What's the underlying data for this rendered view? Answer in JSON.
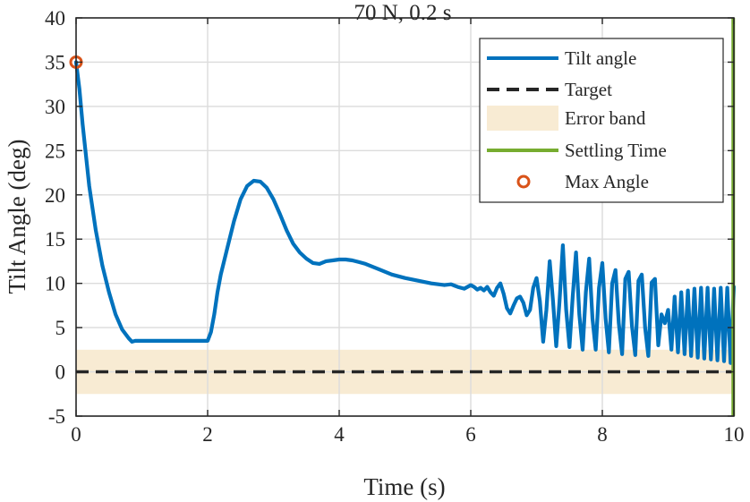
{
  "chart_data": {
    "type": "line",
    "title": "70 N, 0.2 s",
    "xlabel": "Time (s)",
    "ylabel": "Tilt Angle (deg)",
    "xlim": [
      0,
      10
    ],
    "ylim": [
      -5,
      40
    ],
    "xticks": [
      0,
      2,
      4,
      6,
      8,
      10
    ],
    "xtick_labels": [
      "0",
      "2",
      "4",
      "6",
      "8",
      "10"
    ],
    "yticks": [
      -5,
      0,
      5,
      10,
      15,
      20,
      25,
      30,
      35,
      40
    ],
    "ytick_labels": [
      "-5",
      "0",
      "5",
      "10",
      "15",
      "20",
      "25",
      "30",
      "35",
      "40"
    ],
    "grid": true,
    "legend_position": "top-right",
    "colors": {
      "tilt": "#0072BD",
      "target": "#262626",
      "band": "#F8EBD3",
      "settling": "#77AC30",
      "max_marker": "#D95319"
    },
    "series": [
      {
        "name": "Tilt angle",
        "style": "solid",
        "x": [
          0,
          0.05,
          0.1,
          0.15,
          0.2,
          0.3,
          0.4,
          0.5,
          0.6,
          0.7,
          0.8,
          0.85,
          0.9,
          0.95,
          1.0,
          1.2,
          1.4,
          1.6,
          1.8,
          2.0,
          2.05,
          2.1,
          2.15,
          2.2,
          2.3,
          2.4,
          2.5,
          2.6,
          2.7,
          2.8,
          2.9,
          3.0,
          3.1,
          3.2,
          3.3,
          3.4,
          3.5,
          3.6,
          3.7,
          3.8,
          3.9,
          4.0,
          4.1,
          4.2,
          4.3,
          4.4,
          4.6,
          4.8,
          5.0,
          5.2,
          5.4,
          5.6,
          5.7,
          5.8,
          5.9,
          6.0,
          6.05,
          6.1,
          6.15,
          6.2,
          6.25,
          6.3,
          6.35,
          6.4,
          6.45,
          6.5,
          6.55,
          6.6,
          6.65,
          6.7,
          6.75,
          6.8,
          6.85,
          6.9,
          6.95,
          7.0,
          7.05,
          7.1,
          7.15,
          7.2,
          7.25,
          7.3,
          7.35,
          7.4,
          7.45,
          7.5,
          7.55,
          7.6,
          7.65,
          7.7,
          7.75,
          7.8,
          7.85,
          7.9,
          7.95,
          8.0,
          8.05,
          8.1,
          8.15,
          8.2,
          8.25,
          8.3,
          8.35,
          8.4,
          8.45,
          8.5,
          8.55,
          8.6,
          8.65,
          8.7,
          8.75,
          8.8,
          8.85,
          8.9,
          8.95,
          9.0,
          9.05,
          9.1,
          9.15,
          9.2,
          9.25,
          9.3,
          9.35,
          9.4,
          9.45,
          9.5,
          9.55,
          9.6,
          9.65,
          9.7,
          9.75,
          9.8,
          9.85,
          9.9,
          9.95,
          10.0
        ],
        "y": [
          35.0,
          32.0,
          28.0,
          24.5,
          21.0,
          16.0,
          12.0,
          9.0,
          6.5,
          4.8,
          3.8,
          3.4,
          3.5,
          3.5,
          3.5,
          3.5,
          3.5,
          3.5,
          3.5,
          3.5,
          4.5,
          6.5,
          9.0,
          11.0,
          14.0,
          17.0,
          19.5,
          21.0,
          21.6,
          21.5,
          20.8,
          19.5,
          17.8,
          16.0,
          14.5,
          13.5,
          12.8,
          12.3,
          12.2,
          12.5,
          12.6,
          12.7,
          12.7,
          12.6,
          12.4,
          12.2,
          11.6,
          11.0,
          10.6,
          10.3,
          10.0,
          9.8,
          9.9,
          9.6,
          9.4,
          9.8,
          9.6,
          9.3,
          9.5,
          9.2,
          9.6,
          9.0,
          8.6,
          9.5,
          10.0,
          8.8,
          7.2,
          6.6,
          7.5,
          8.3,
          8.5,
          7.8,
          6.4,
          7.0,
          9.5,
          10.6,
          8.0,
          3.4,
          7.0,
          12.5,
          8.0,
          2.9,
          8.0,
          14.3,
          7.0,
          2.8,
          8.5,
          13.5,
          6.5,
          2.5,
          9.0,
          12.8,
          6.0,
          2.5,
          9.5,
          12.3,
          6.0,
          2.2,
          10.0,
          11.5,
          5.5,
          2.0,
          10.5,
          11.3,
          5.2,
          1.9,
          10.3,
          11.0,
          5.0,
          1.8,
          10.1,
          10.5,
          3.0,
          6.5,
          5.5,
          7.0,
          2.5,
          8.5,
          2.2,
          9.0,
          2.0,
          9.2,
          1.8,
          9.4,
          1.6,
          9.5,
          1.5,
          9.5,
          1.4,
          9.4,
          1.3,
          9.5,
          1.2,
          9.5,
          1.0,
          9.6
        ]
      },
      {
        "name": "Target",
        "style": "dashed",
        "x": [
          0,
          10
        ],
        "y": [
          0,
          0
        ]
      }
    ],
    "error_band": {
      "name": "Error band",
      "y_range": [
        -2.5,
        2.5
      ]
    },
    "settling_time": {
      "name": "Settling Time",
      "x": 9.99
    },
    "max_angle": {
      "name": "Max Angle",
      "x": 0,
      "y": 35
    },
    "legend": [
      "Tilt angle",
      "Target",
      "Error band",
      "Settling Time",
      "Max Angle"
    ]
  }
}
